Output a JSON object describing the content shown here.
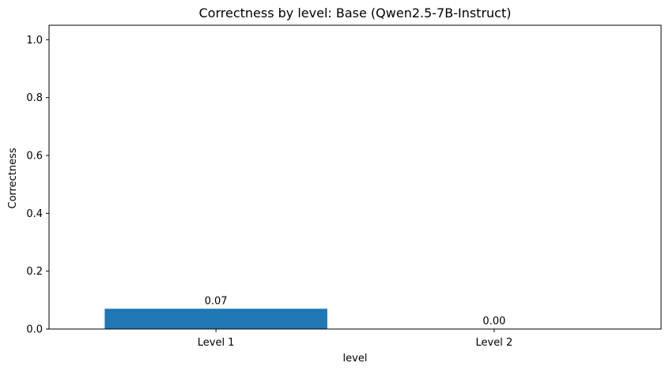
{
  "chart_data": {
    "type": "bar",
    "title": "Correctness by level: Base (Qwen2.5-7B-Instruct)",
    "xlabel": "level",
    "ylabel": "Correctness",
    "categories": [
      "Level 1",
      "Level 2"
    ],
    "values": [
      0.07,
      0.0
    ],
    "value_labels": [
      "0.07",
      "0.00"
    ],
    "ylim": [
      0,
      1.05
    ],
    "yticks": [
      0.0,
      0.2,
      0.4,
      0.6,
      0.8,
      1.0
    ],
    "ytick_labels": [
      "0.0",
      "0.2",
      "0.4",
      "0.6",
      "0.8",
      "1.0"
    ],
    "grid": false,
    "legend": "none",
    "bar_color": "#1f77b4"
  }
}
